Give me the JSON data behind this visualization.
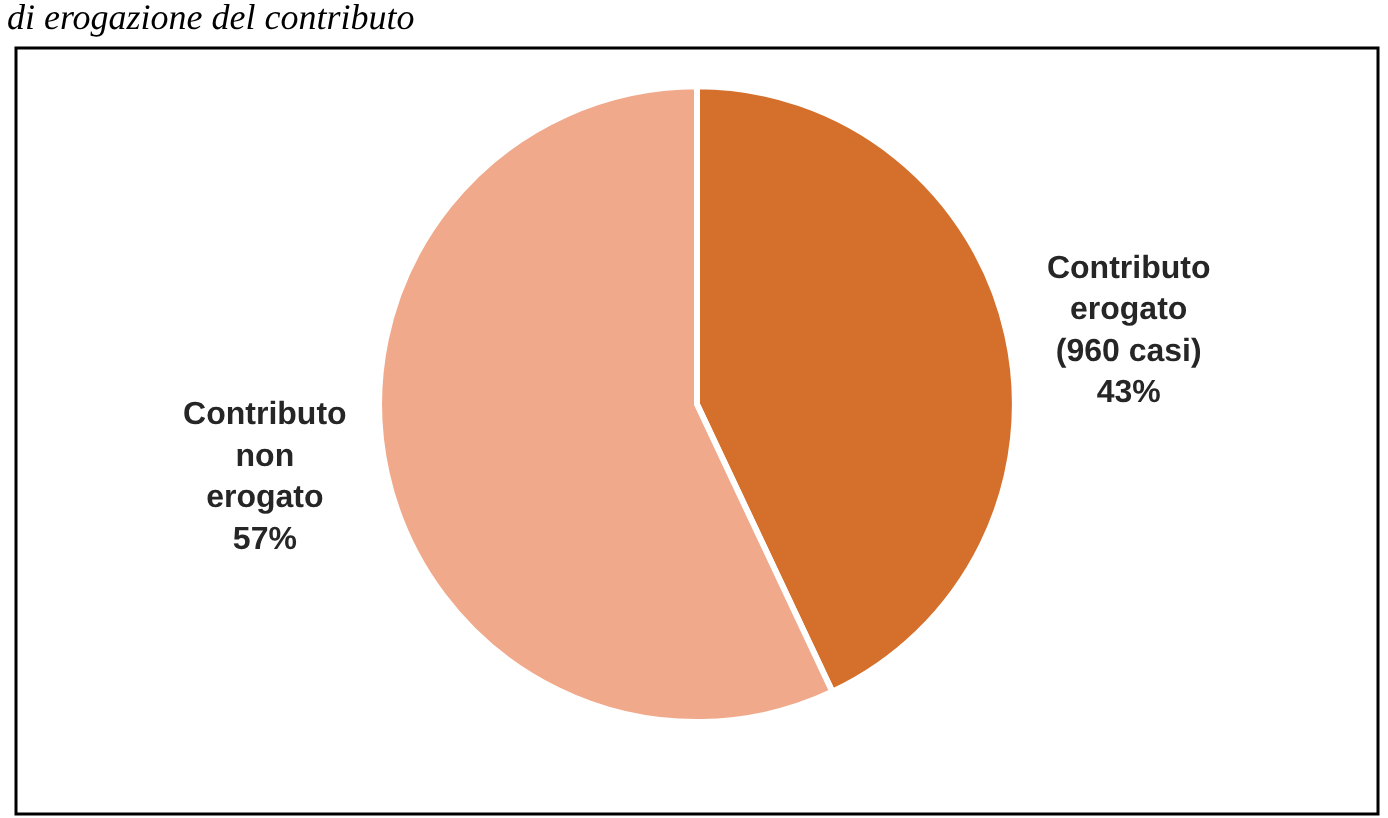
{
  "chart_data": {
    "type": "pie",
    "title": "di erogazione del contributo",
    "categories": [
      "Contributo erogato (960 casi)",
      "Contributo non erogato"
    ],
    "values": [
      43,
      57
    ],
    "colors": [
      "#d4702c",
      "#f0a98a"
    ],
    "value_labels": [
      "43%",
      "57%"
    ],
    "legend": false
  }
}
